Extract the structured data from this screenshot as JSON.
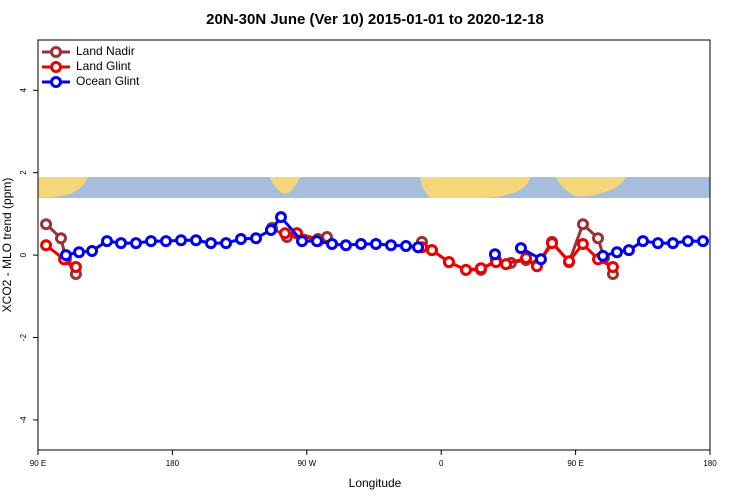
{
  "chart_data": {
    "type": "line",
    "title": "20N-30N June (Ver 10)   2015-01-01 to 2020-12-18",
    "x_label": "Longitude",
    "y_label": "XCO2 - MLO trend (ppm)",
    "xlim": [
      90,
      540
    ],
    "xticks": [
      {
        "value": 90,
        "label": "90 E"
      },
      180,
      {
        "value": 270,
        "label": "90 W"
      },
      {
        "value": 360,
        "label": "0"
      },
      {
        "value": 450,
        "label": "90 E"
      },
      {
        "value": 540,
        "label": "180"
      }
    ],
    "ylim": [
      -4.73,
      5.22
    ],
    "yticks": [
      -4,
      -2,
      0,
      2,
      4
    ],
    "legend": "top-left",
    "series": [
      {
        "name": "Land Nadir",
        "color": "#993333",
        "x": [
          95.4,
          105.4,
          108.7,
          115.4,
          null,
          246.7,
          256.7,
          263.4,
          277.5,
          283.5,
          null,
          347.1,
          353.8,
          365.2,
          376.6,
          386.6,
          396.7,
          406.7,
          416.8,
          424.1,
          434.2,
          445.6,
          454.9,
          465,
          469,
          475
        ],
        "values": [
          0.75,
          0.41,
          -0.1,
          -0.46,
          null,
          0.66,
          0.44,
          0.53,
          0.39,
          0.44,
          null,
          0.32,
          0.12,
          -0.17,
          -0.36,
          -0.36,
          -0.12,
          -0.19,
          -0.12,
          -0.24,
          0.32,
          -0.17,
          0.75,
          0.41,
          -0.07,
          -0.46
        ]
      },
      {
        "name": "Land Glint",
        "color": "#ee0000",
        "x": [
          95.4,
          107.4,
          115.4,
          null,
          255.4,
          263.4,
          277.5,
          null,
          347.1,
          353.8,
          365.2,
          376.6,
          386.6,
          396.7,
          403.4,
          416.8,
          424.1,
          434.2,
          445.6,
          454.9,
          465,
          475
        ],
        "values": [
          0.24,
          -0.1,
          -0.29,
          null,
          0.53,
          0.53,
          0.34,
          null,
          0.19,
          0.12,
          -0.17,
          -0.36,
          -0.32,
          -0.17,
          -0.22,
          -0.07,
          -0.27,
          0.29,
          -0.15,
          0.27,
          -0.1,
          -0.29
        ]
      },
      {
        "name": "Ocean Glint",
        "color": "#0000ee",
        "x": [
          108.7,
          117.5,
          126.2,
          136.2,
          145.6,
          155.6,
          165.7,
          175.7,
          185.8,
          195.8,
          205.8,
          215.9,
          225.9,
          236,
          246,
          252.7,
          266.8,
          276.8,
          286.9,
          296.2,
          306.3,
          316.3,
          326.4,
          336.4,
          344.5,
          null,
          396,
          null,
          413.4,
          426.8,
          null,
          468.3,
          477.7,
          485.7,
          495.1,
          505.1,
          515.2,
          525.2,
          535.3
        ],
        "values": [
          0,
          0.07,
          0.1,
          0.34,
          0.29,
          0.29,
          0.34,
          0.34,
          0.36,
          0.36,
          0.29,
          0.29,
          0.39,
          0.41,
          0.61,
          0.92,
          0.34,
          0.34,
          0.27,
          0.24,
          0.27,
          0.27,
          0.24,
          0.22,
          0.19,
          null,
          0.02,
          null,
          0.17,
          -0.1,
          null,
          -0.02,
          0.07,
          0.12,
          0.34,
          0.29,
          0.29,
          0.34,
          0.34
        ]
      }
    ]
  }
}
